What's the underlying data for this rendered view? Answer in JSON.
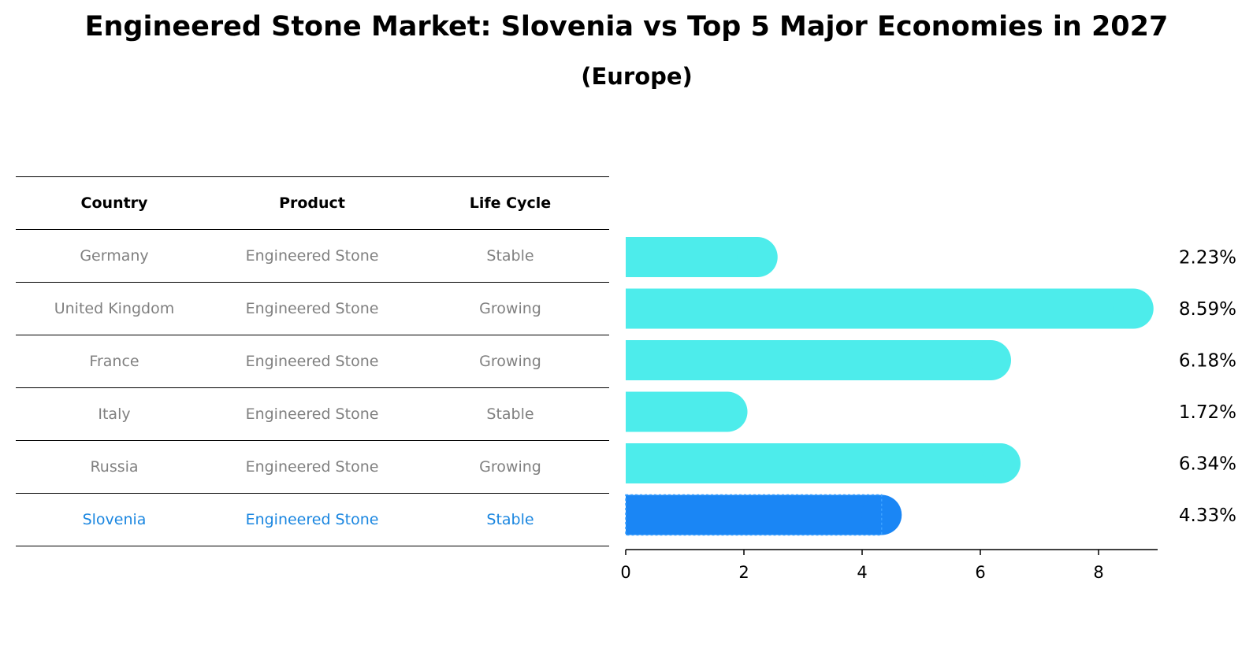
{
  "title": "Engineered Stone Market: Slovenia vs Top 5 Major Economies in 2027",
  "subtitle": "(Europe)",
  "table": {
    "headers": [
      "Country",
      "Product",
      "Life Cycle"
    ],
    "rows": [
      [
        "Germany",
        "Engineered Stone",
        "Stable"
      ],
      [
        "United Kingdom",
        "Engineered Stone",
        "Growing"
      ],
      [
        "France",
        "Engineered Stone",
        "Growing"
      ],
      [
        "Italy",
        "Engineered Stone",
        "Stable"
      ],
      [
        "Russia",
        "Engineered Stone",
        "Growing"
      ],
      [
        "Slovenia",
        "Engineered Stone",
        "Stable"
      ]
    ],
    "highlight_row": 5
  },
  "chart_data": {
    "type": "bar",
    "orientation": "horizontal",
    "categories": [
      "Germany",
      "United Kingdom",
      "France",
      "Italy",
      "Russia",
      "Slovenia"
    ],
    "values": [
      2.23,
      8.59,
      6.18,
      1.72,
      6.34,
      4.33
    ],
    "value_labels": [
      "2.23%",
      "8.59%",
      "6.18%",
      "1.72%",
      "6.34%",
      "4.33%"
    ],
    "xlim": [
      0,
      9
    ],
    "xticks": [
      0,
      2,
      4,
      6,
      8
    ],
    "grid": false,
    "colors": {
      "default": "#4deceb",
      "highlight": "#1a86f5"
    },
    "highlight_index": 5
  }
}
